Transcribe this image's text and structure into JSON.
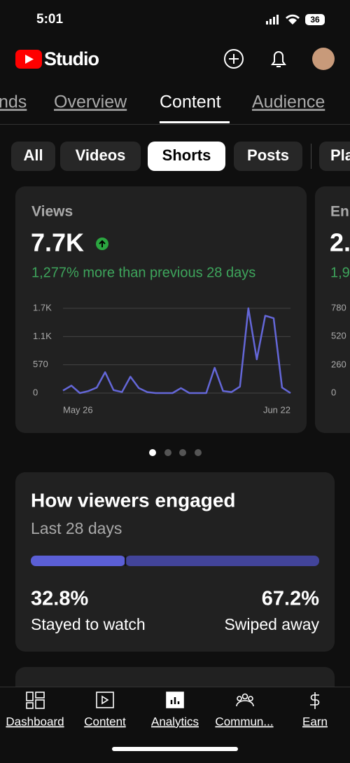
{
  "status_bar": {
    "time": "5:01",
    "battery": "36"
  },
  "header": {
    "title": "Studio"
  },
  "tabs": [
    "nds",
    "Overview",
    "Content",
    "Audience"
  ],
  "chips": [
    "All",
    "Videos",
    "Shorts",
    "Posts",
    "Pla"
  ],
  "views_card": {
    "label": "Views",
    "value": "7.7K",
    "change": "1,277% more than previous 28 days"
  },
  "chart_data": {
    "type": "line",
    "categories": [
      "May 26",
      null,
      null,
      null,
      null,
      null,
      null,
      null,
      null,
      null,
      null,
      null,
      null,
      null,
      null,
      null,
      null,
      null,
      null,
      null,
      null,
      null,
      null,
      null,
      null,
      null,
      null,
      "Jun 22"
    ],
    "series": [
      {
        "name": "Views",
        "color": "#6467d8",
        "values": [
          50,
          150,
          0,
          40,
          110,
          420,
          60,
          20,
          330,
          100,
          20,
          0,
          0,
          0,
          100,
          0,
          0,
          0,
          510,
          40,
          20,
          130,
          1710,
          680,
          1560,
          1510,
          110,
          0
        ]
      }
    ],
    "ylim": [
      0,
      1710
    ],
    "yticks": [
      0,
      570,
      {
        "value": 1140,
        "label": "1.1K"
      },
      {
        "value": 1710,
        "label": "1.7K"
      }
    ],
    "grid": true
  },
  "next_card": {
    "label": "En",
    "value": "2.",
    "change": "1,9",
    "ticks": [
      "780",
      "520",
      "260",
      "0"
    ]
  },
  "engagement": {
    "title": "How viewers engaged",
    "subtitle": "Last 28 days",
    "values": [
      32.8,
      67.2
    ],
    "value_labels": [
      "32.8%",
      "67.2%"
    ],
    "labels": [
      "Stayed to watch",
      "Swiped away"
    ],
    "colors": [
      "#5b5fd6",
      "#42449a"
    ]
  },
  "nav": [
    "Dashboard",
    "Content",
    "Analytics",
    "Commun...",
    "Earn"
  ]
}
